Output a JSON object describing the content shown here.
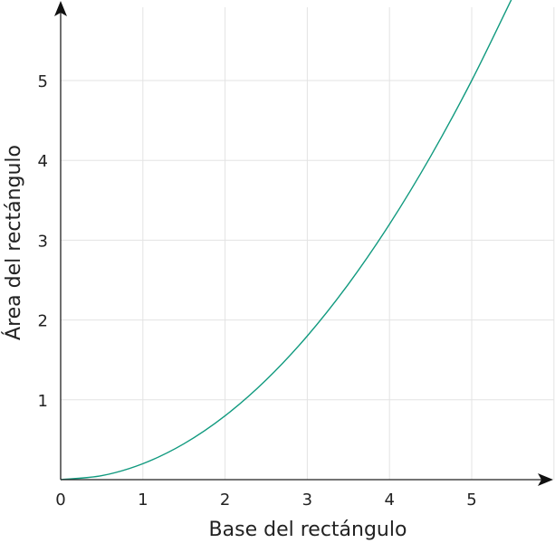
{
  "chart_data": {
    "type": "line",
    "xlabel": "Base del rectángulo",
    "ylabel": "Área del rectángulo",
    "xlim": [
      0,
      6
    ],
    "ylim": [
      0,
      6
    ],
    "x_ticks": [
      "0",
      "1",
      "2",
      "3",
      "4",
      "5"
    ],
    "y_ticks": [
      "1",
      "2",
      "3",
      "4",
      "5"
    ],
    "grid": true,
    "series": [
      {
        "color": "#119a7f",
        "x": [
          0,
          0.5,
          1,
          1.5,
          2,
          2.5,
          3,
          3.5,
          4,
          4.5,
          5,
          5.5
        ],
        "y": [
          0,
          0.05,
          0.2,
          0.45,
          0.8,
          1.25,
          1.8,
          2.45,
          3.2,
          4.05,
          5.0,
          6.05
        ]
      }
    ]
  }
}
